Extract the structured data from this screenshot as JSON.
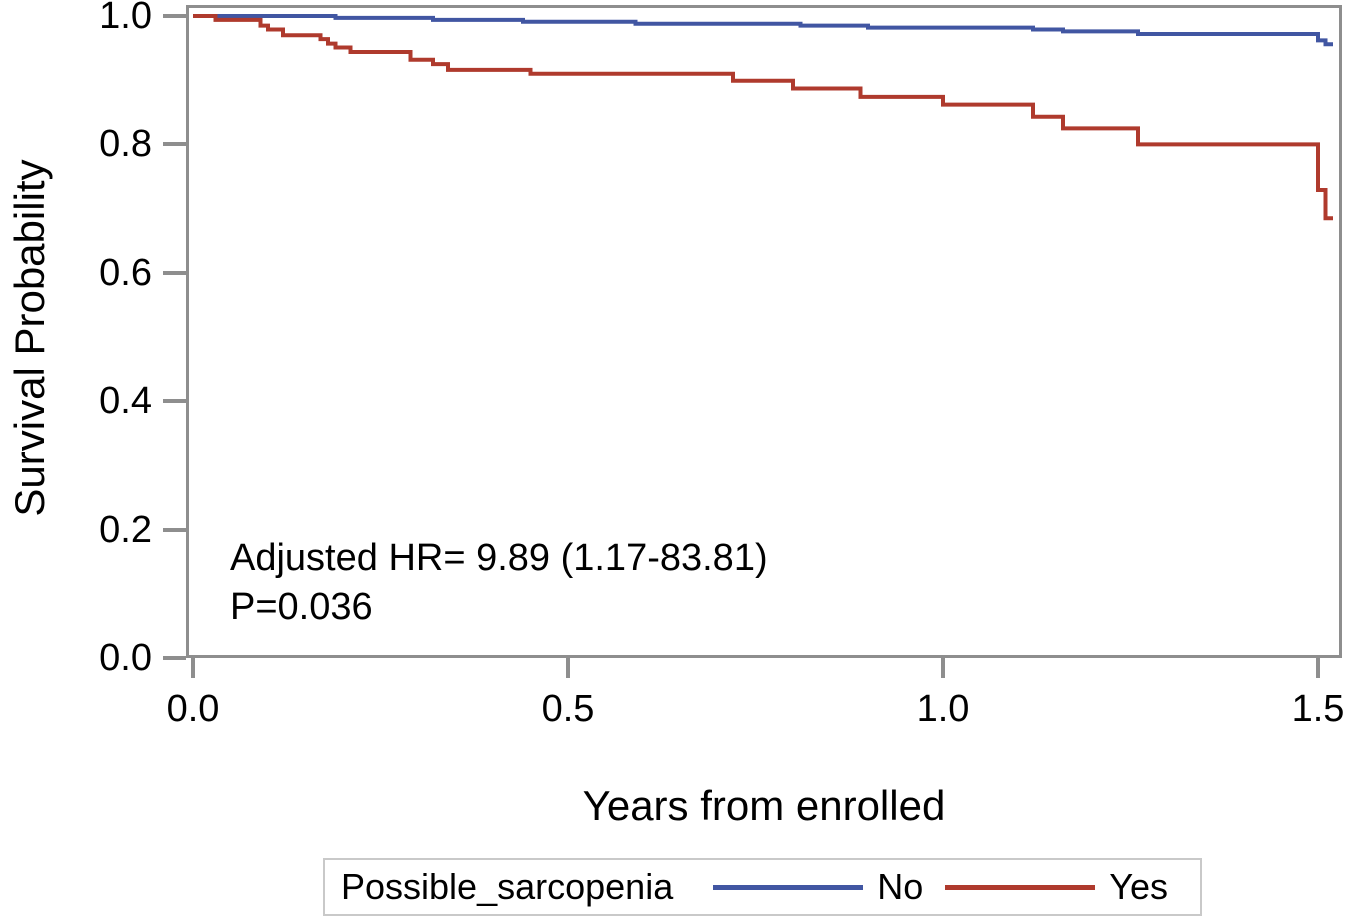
{
  "figure": {
    "background": "#ffffff",
    "axis_color": "#8e8e8e",
    "text_color": "#000000",
    "legend_border_color": "#c9c9c9"
  },
  "chart_data": {
    "type": "line",
    "subtype": "kaplan_meier_step",
    "title": "",
    "xlabel": "Years from enrolled",
    "ylabel": "Survival Probability",
    "xlim": [
      0,
      1.55
    ],
    "ylim": [
      0.0,
      1.0
    ],
    "grid": false,
    "x_ticks": {
      "values": [
        0.0,
        0.5,
        1.0,
        1.5
      ],
      "labels": [
        "0.0",
        "0.5",
        "1.0",
        "1.5"
      ]
    },
    "y_ticks": {
      "values": [
        1.0,
        0.8,
        0.6,
        0.4,
        0.2,
        0.0
      ],
      "labels": [
        "1.0",
        "0.8",
        "0.6",
        "0.4",
        "0.2",
        "0.0"
      ]
    },
    "annotations": {
      "hr_text": "Adjusted HR= 9.89 (1.17-83.81)",
      "p_text": "P=0.036"
    },
    "legend": {
      "title": "Possible_sarcopenia",
      "position": "bottom"
    },
    "series": [
      {
        "name": "No",
        "color": "#4156a2",
        "points": [
          [
            0.0,
            1.0
          ],
          [
            0.19,
            0.997
          ],
          [
            0.32,
            0.994
          ],
          [
            0.44,
            0.991
          ],
          [
            0.59,
            0.988
          ],
          [
            0.81,
            0.985
          ],
          [
            0.9,
            0.982
          ],
          [
            1.12,
            0.979
          ],
          [
            1.16,
            0.976
          ],
          [
            1.26,
            0.972
          ],
          [
            1.5,
            0.962
          ],
          [
            1.51,
            0.956
          ],
          [
            1.52,
            0.956
          ]
        ]
      },
      {
        "name": "Yes",
        "color": "#af3a2d",
        "points": [
          [
            0.0,
            1.0
          ],
          [
            0.03,
            0.994
          ],
          [
            0.09,
            0.985
          ],
          [
            0.1,
            0.979
          ],
          [
            0.12,
            0.97
          ],
          [
            0.17,
            0.964
          ],
          [
            0.18,
            0.957
          ],
          [
            0.19,
            0.951
          ],
          [
            0.21,
            0.944
          ],
          [
            0.29,
            0.932
          ],
          [
            0.32,
            0.925
          ],
          [
            0.34,
            0.916
          ],
          [
            0.45,
            0.91
          ],
          [
            0.72,
            0.899
          ],
          [
            0.8,
            0.887
          ],
          [
            0.89,
            0.874
          ],
          [
            1.0,
            0.862
          ],
          [
            1.12,
            0.843
          ],
          [
            1.16,
            0.825
          ],
          [
            1.26,
            0.8
          ],
          [
            1.5,
            0.729
          ],
          [
            1.51,
            0.685
          ],
          [
            1.52,
            0.685
          ]
        ]
      }
    ]
  }
}
